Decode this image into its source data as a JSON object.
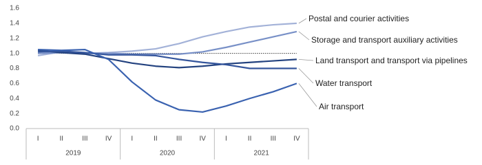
{
  "chart_data": {
    "type": "line",
    "categories": [
      "I",
      "II",
      "III",
      "IV",
      "I",
      "II",
      "III",
      "IV",
      "I",
      "II",
      "III",
      "IV"
    ],
    "years": [
      "2019",
      "2020",
      "2021"
    ],
    "series": [
      {
        "name": "Postal and courier activities",
        "color": "#a3b2d8",
        "values": [
          0.97,
          1.02,
          1.0,
          1.01,
          1.03,
          1.06,
          1.13,
          1.22,
          1.29,
          1.35,
          1.38,
          1.4
        ]
      },
      {
        "name": "Storage and transport auxiliary activities",
        "color": "#7890c7",
        "values": [
          1.0,
          1.01,
          1.0,
          1.0,
          0.99,
          0.99,
          0.99,
          1.02,
          1.08,
          1.15,
          1.22,
          1.29
        ]
      },
      {
        "name": "Land transport and transport via pipelines",
        "color": "#23427f",
        "values": [
          1.04,
          1.01,
          0.99,
          0.93,
          0.87,
          0.83,
          0.81,
          0.83,
          0.86,
          0.88,
          0.9,
          0.92
        ]
      },
      {
        "name": "Water transport",
        "color": "#34559c",
        "values": [
          1.02,
          1.03,
          1.01,
          0.98,
          0.98,
          0.97,
          0.92,
          0.88,
          0.85,
          0.8,
          0.8,
          0.8
        ]
      },
      {
        "name": "Air transport",
        "color": "#3a62b0",
        "values": [
          1.05,
          1.04,
          1.05,
          0.92,
          0.62,
          0.38,
          0.25,
          0.22,
          0.3,
          0.4,
          0.49,
          0.6
        ]
      }
    ],
    "reference_line": 1.0,
    "ylim": [
      0,
      1.6
    ],
    "yticks": [
      {
        "value": 0,
        "label": "0.0"
      },
      0.2,
      0.4,
      0.6,
      0.8,
      {
        "value": 1,
        "label": "1.0"
      },
      1.2,
      1.4,
      1.6
    ],
    "grid": false
  }
}
